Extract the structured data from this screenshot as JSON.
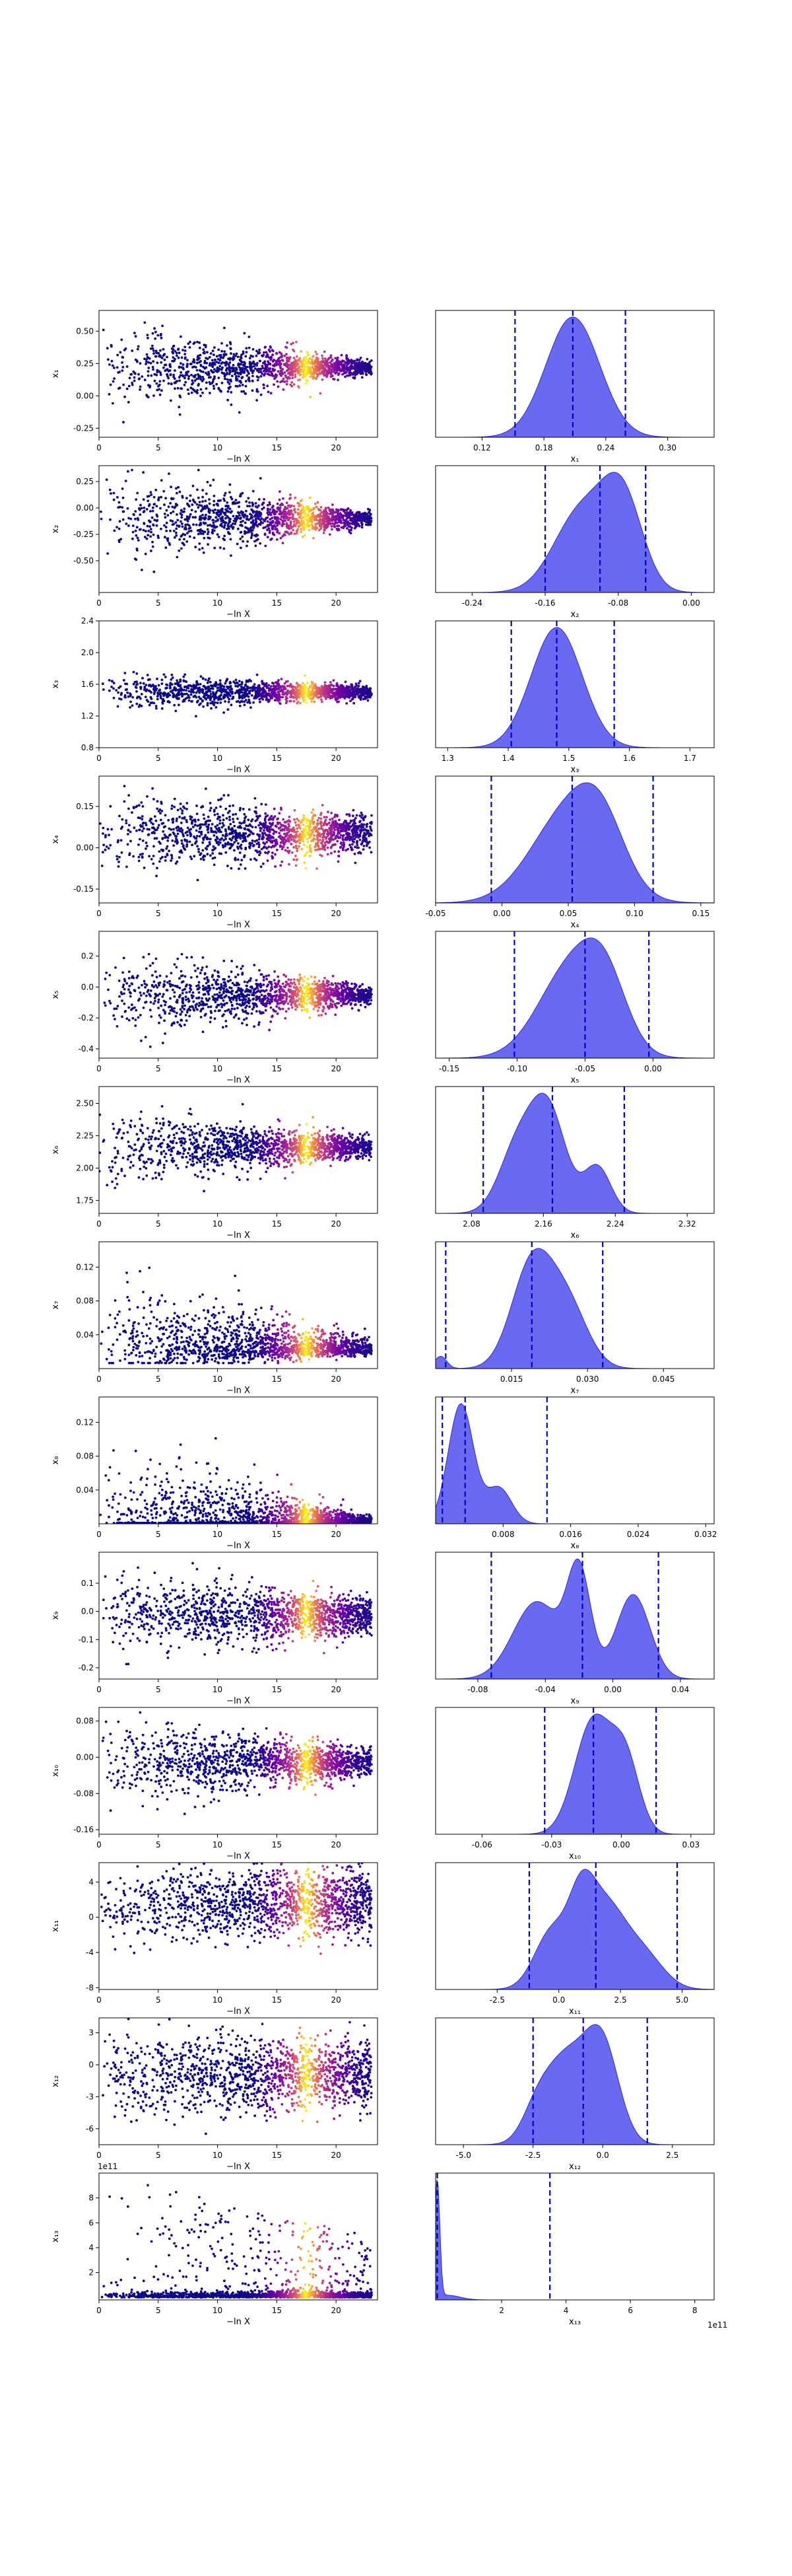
{
  "figure": {
    "colors": {
      "hist_fill": "#4444ee",
      "hist_edge": "#2b2bd9",
      "dashed": "#0000cc",
      "scatter_low": "#0d0887",
      "scatter_mid": "#cc4778",
      "scatter_high": "#f0f921"
    }
  },
  "chart_data": [
    {
      "type": "scatter",
      "row": 0,
      "xlabel": "−ln X",
      "ylabel": "x₁",
      "xlim": [
        0,
        23.5
      ],
      "ylim": [
        -0.32,
        0.66
      ],
      "xticks": [
        "0",
        "5",
        "10",
        "15",
        "20"
      ],
      "yticks": [
        "-0.25",
        "0.00",
        "0.25",
        "0.50"
      ],
      "converge": 0.22,
      "spread": 0.17,
      "spread_end": 0.025
    },
    {
      "type": "histogram",
      "row": 0,
      "xlabel": "x₁",
      "xlim": [
        0.075,
        0.345
      ],
      "xticks": [
        "0.12",
        "0.18",
        "0.24",
        "0.30"
      ],
      "quantiles": [
        0.152,
        0.208,
        0.259
      ],
      "peaks": [
        [
          0.208,
          0.026,
          1.0
        ]
      ]
    },
    {
      "type": "scatter",
      "row": 1,
      "xlabel": "−ln X",
      "ylabel": "x₂",
      "xlim": [
        0,
        23.5
      ],
      "ylim": [
        -0.8,
        0.4
      ],
      "xticks": [
        "0",
        "5",
        "10",
        "15",
        "20"
      ],
      "yticks": [
        "-0.50",
        "-0.25",
        "0.00",
        "0.25"
      ],
      "converge": -0.1,
      "spread": 0.22,
      "spread_end": 0.03
    },
    {
      "type": "histogram",
      "row": 1,
      "xlabel": "x₂",
      "xlim": [
        -0.28,
        0.025
      ],
      "xticks": [
        "-0.24",
        "-0.16",
        "-0.08",
        "0.00"
      ],
      "quantiles": [
        -0.16,
        -0.1,
        -0.05
      ],
      "peaks": [
        [
          -0.12,
          0.03,
          0.7
        ],
        [
          -0.075,
          0.022,
          0.75
        ]
      ]
    },
    {
      "type": "scatter",
      "row": 2,
      "xlabel": "−ln X",
      "ylabel": "x₃",
      "xlim": [
        0,
        23.5
      ],
      "ylim": [
        0.8,
        2.4
      ],
      "xticks": [
        "0",
        "5",
        "10",
        "15",
        "20"
      ],
      "yticks": [
        "0.8",
        "1.2",
        "1.6",
        "2.0",
        "2.4"
      ],
      "converge": 1.5,
      "spread": 0.12,
      "spread_end": 0.04
    },
    {
      "type": "histogram",
      "row": 2,
      "xlabel": "x₃",
      "xlim": [
        1.28,
        1.74
      ],
      "xticks": [
        "1.3",
        "1.4",
        "1.5",
        "1.6",
        "1.7"
      ],
      "quantiles": [
        1.405,
        1.48,
        1.575
      ],
      "peaks": [
        [
          1.48,
          0.042,
          1.0
        ]
      ]
    },
    {
      "type": "scatter",
      "row": 3,
      "xlabel": "−ln X",
      "ylabel": "x₄",
      "xlim": [
        0,
        23.5
      ],
      "ylim": [
        -0.2,
        0.26
      ],
      "xticks": [
        "0",
        "5",
        "10",
        "15",
        "20"
      ],
      "yticks": [
        "-0.15",
        "0.00",
        "0.15"
      ],
      "converge": 0.05,
      "spread": 0.075,
      "spread_end": 0.03
    },
    {
      "type": "histogram",
      "row": 3,
      "xlabel": "x₄",
      "xlim": [
        -0.05,
        0.16
      ],
      "xticks": [
        "-0.05",
        "0.00",
        "0.05",
        "0.10",
        "0.15"
      ],
      "quantiles": [
        -0.008,
        0.053,
        0.114
      ],
      "peaks": [
        [
          0.05,
          0.028,
          1.0
        ],
        [
          0.075,
          0.018,
          0.55
        ]
      ]
    },
    {
      "type": "scatter",
      "row": 4,
      "xlabel": "−ln X",
      "ylabel": "x₅",
      "xlim": [
        0,
        23.5
      ],
      "ylim": [
        -0.46,
        0.36
      ],
      "xticks": [
        "0",
        "5",
        "10",
        "15",
        "20"
      ],
      "yticks": [
        "-0.4",
        "-0.2",
        "0.0",
        "0.2"
      ],
      "converge": -0.05,
      "spread": 0.13,
      "spread_end": 0.03
    },
    {
      "type": "histogram",
      "row": 4,
      "xlabel": "x₅",
      "xlim": [
        -0.16,
        0.045
      ],
      "xticks": [
        "-0.15",
        "-0.10",
        "-0.05",
        "0.00"
      ],
      "quantiles": [
        -0.102,
        -0.05,
        -0.003
      ],
      "peaks": [
        [
          -0.06,
          0.024,
          0.9
        ],
        [
          -0.035,
          0.016,
          0.55
        ]
      ]
    },
    {
      "type": "scatter",
      "row": 5,
      "xlabel": "−ln X",
      "ylabel": "x₆",
      "xlim": [
        0,
        23.5
      ],
      "ylim": [
        1.65,
        2.63
      ],
      "xticks": [
        "0",
        "5",
        "10",
        "15",
        "20"
      ],
      "yticks": [
        "1.75",
        "2.00",
        "2.25",
        "2.50"
      ],
      "converge": 2.16,
      "spread": 0.15,
      "spread_end": 0.04
    },
    {
      "type": "histogram",
      "row": 5,
      "xlabel": "x₆",
      "xlim": [
        2.04,
        2.35
      ],
      "xticks": [
        "2.08",
        "2.16",
        "2.24",
        "2.32"
      ],
      "quantiles": [
        2.093,
        2.17,
        2.25
      ],
      "peaks": [
        [
          2.165,
          0.02,
          1.0
        ],
        [
          2.13,
          0.02,
          0.6
        ],
        [
          2.22,
          0.015,
          0.45
        ]
      ]
    },
    {
      "type": "scatter",
      "row": 6,
      "xlabel": "−ln X",
      "ylabel": "x₇",
      "xlim": [
        0,
        23.5
      ],
      "ylim": [
        0.0,
        0.15
      ],
      "xticks": [
        "0",
        "5",
        "10",
        "15",
        "20"
      ],
      "yticks": [
        "0.04",
        "0.08",
        "0.12"
      ],
      "converge": 0.022,
      "spread": 0.035,
      "spread_end": 0.006,
      "clip_low": true
    },
    {
      "type": "histogram",
      "row": 6,
      "xlabel": "x₇",
      "xlim": [
        0.0,
        0.055
      ],
      "xticks": [
        "0.015",
        "0.030",
        "0.045"
      ],
      "quantiles": [
        0.002,
        0.019,
        0.033
      ],
      "peaks": [
        [
          0.019,
          0.004,
          1.0
        ],
        [
          0.026,
          0.004,
          0.6
        ],
        [
          0.001,
          0.0012,
          0.12
        ]
      ]
    },
    {
      "type": "scatter",
      "row": 7,
      "xlabel": "−ln X",
      "ylabel": "x₈",
      "xlim": [
        0,
        23.5
      ],
      "ylim": [
        0.0,
        0.15
      ],
      "xticks": [
        "0",
        "5",
        "10",
        "15",
        "20"
      ],
      "yticks": [
        "0.04",
        "0.08",
        "0.12"
      ],
      "converge": 0.003,
      "spread": 0.04,
      "spread_end": 0.002,
      "clip_low": true
    },
    {
      "type": "histogram",
      "row": 7,
      "xlabel": "x₈",
      "xlim": [
        0.0,
        0.033
      ],
      "xticks": [
        "0.008",
        "0.016",
        "0.024",
        "0.032"
      ],
      "quantiles": [
        0.0008,
        0.0035,
        0.0132
      ],
      "peaks": [
        [
          0.003,
          0.0015,
          1.0
        ],
        [
          0.0075,
          0.0015,
          0.3
        ]
      ]
    },
    {
      "type": "scatter",
      "row": 8,
      "xlabel": "−ln X",
      "ylabel": "x₉",
      "xlim": [
        0,
        23.5
      ],
      "ylim": [
        -0.24,
        0.21
      ],
      "xticks": [
        "0",
        "5",
        "10",
        "15",
        "20"
      ],
      "yticks": [
        "-0.2",
        "-0.1",
        "0.0",
        "0.1"
      ],
      "converge": -0.015,
      "spread": 0.08,
      "spread_end": 0.03
    },
    {
      "type": "histogram",
      "row": 8,
      "xlabel": "x₉",
      "xlim": [
        -0.105,
        0.06
      ],
      "xticks": [
        "-0.08",
        "-0.04",
        "0.00",
        "0.04"
      ],
      "quantiles": [
        -0.072,
        -0.018,
        0.027
      ],
      "peaks": [
        [
          -0.02,
          0.007,
          1.0
        ],
        [
          -0.045,
          0.014,
          0.75
        ],
        [
          0.012,
          0.01,
          0.82
        ]
      ]
    },
    {
      "type": "scatter",
      "row": 9,
      "xlabel": "−ln X",
      "ylabel": "x₁₀",
      "xlim": [
        0,
        23.5
      ],
      "ylim": [
        -0.17,
        0.11
      ],
      "xticks": [
        "0",
        "5",
        "10",
        "15",
        "20"
      ],
      "yticks": [
        "-0.16",
        "-0.08",
        "0.00",
        "0.08"
      ],
      "converge": -0.01,
      "spread": 0.05,
      "spread_end": 0.015
    },
    {
      "type": "histogram",
      "row": 9,
      "xlabel": "x₁₀",
      "xlim": [
        -0.08,
        0.04
      ],
      "xticks": [
        "-0.06",
        "-0.03",
        "0.00",
        "0.03"
      ],
      "quantiles": [
        -0.033,
        -0.012,
        0.015
      ],
      "peaks": [
        [
          -0.012,
          0.008,
          1.0
        ],
        [
          0.002,
          0.006,
          0.6
        ]
      ]
    },
    {
      "type": "scatter",
      "row": 10,
      "xlabel": "−ln X",
      "ylabel": "x₁₁",
      "xlim": [
        0,
        23.5
      ],
      "ylim": [
        -8.2,
        6.2
      ],
      "xticks": [
        "0",
        "5",
        "10",
        "15",
        "20"
      ],
      "yticks": [
        "-8",
        "-4",
        "0",
        "4"
      ],
      "converge": 1.5,
      "spread": 2.3,
      "spread_end": 1.9
    },
    {
      "type": "histogram",
      "row": 10,
      "xlabel": "x₁₁",
      "xlim": [
        -5.0,
        6.3
      ],
      "xticks": [
        "-2.5",
        "0.0",
        "2.5",
        "5.0"
      ],
      "quantiles": [
        -1.2,
        1.5,
        4.8
      ],
      "peaks": [
        [
          -0.3,
          0.7,
          0.65
        ],
        [
          0.9,
          0.5,
          0.62
        ],
        [
          1.8,
          0.9,
          1.0
        ],
        [
          3.5,
          0.8,
          0.35
        ]
      ]
    },
    {
      "type": "scatter",
      "row": 11,
      "xlabel": "−ln X",
      "ylabel": "x₁₂",
      "xlim": [
        0,
        23.5
      ],
      "ylim": [
        -7.5,
        4.4
      ],
      "xticks": [
        "0",
        "5",
        "10",
        "15",
        "20"
      ],
      "yticks": [
        "-6",
        "-3",
        "0",
        "3"
      ],
      "converge": -0.9,
      "spread": 2.0,
      "spread_end": 1.6
    },
    {
      "type": "histogram",
      "row": 11,
      "xlabel": "x₁₂",
      "xlim": [
        -6.0,
        4.0
      ],
      "xticks": [
        "-5.0",
        "-2.5",
        "0.0",
        "2.5"
      ],
      "quantiles": [
        -2.5,
        -0.7,
        1.6
      ],
      "peaks": [
        [
          -1.3,
          0.8,
          0.95
        ],
        [
          0.0,
          0.6,
          1.0
        ],
        [
          -2.4,
          0.5,
          0.25
        ]
      ]
    },
    {
      "type": "scatter",
      "row": 12,
      "xlabel": "−ln X",
      "ylabel": "x₁₃",
      "xlim": [
        0,
        23.5
      ],
      "ylim": [
        -0.2,
        10.0
      ],
      "xticks": [
        "0",
        "5",
        "10",
        "15",
        "20"
      ],
      "yticks": [
        "2",
        "4",
        "6",
        "8"
      ],
      "offset_text": "1e11",
      "converge": 0.05,
      "spread": 0.6,
      "spread_end": 0.1,
      "clip_low": true,
      "heavy_tail": true
    },
    {
      "type": "histogram",
      "row": 12,
      "xlabel": "x₁₃",
      "xlim": [
        -0.05,
        8.6
      ],
      "xticks": [
        "2",
        "4",
        "6",
        "8"
      ],
      "offset_text": "1e11",
      "quantiles": [
        0.0,
        0.002,
        3.5
      ],
      "peaks": [
        [
          0.0,
          0.08,
          1.0
        ],
        [
          0.3,
          0.4,
          0.04
        ]
      ]
    }
  ]
}
